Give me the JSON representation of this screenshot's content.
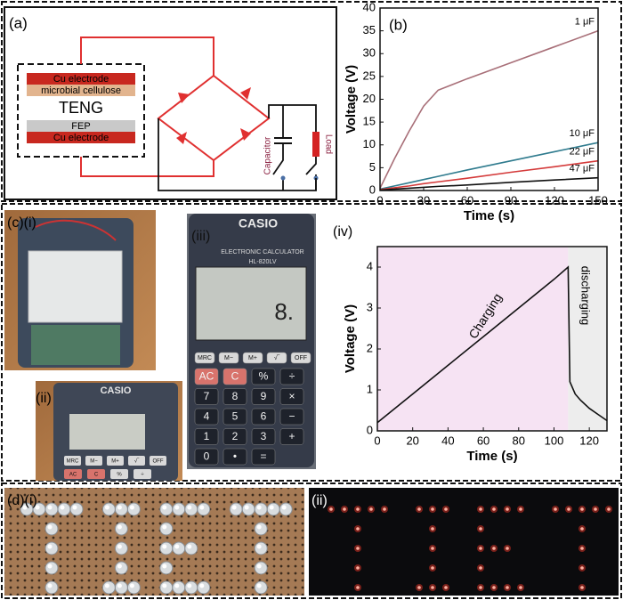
{
  "panel_a": {
    "label": "(a)",
    "layers": [
      "Cu electrode",
      "microbial cellulose",
      "FEP",
      "Cu electrode"
    ],
    "device": "TENG",
    "capacitor": "Capacitor",
    "load": "Load"
  },
  "panel_c": {
    "label_i": "(c)(i)",
    "label_ii": "(ii)",
    "label_iii": "(iii)",
    "brand": "CASIO",
    "subtitle": "ELECTRONIC CALCULATOR",
    "model": "HL-820LV",
    "display": "8.",
    "keys": [
      [
        "MRC",
        "M−",
        "M+",
        "√‾",
        "OFF"
      ],
      [
        "AC",
        "C",
        "%",
        "÷"
      ],
      [
        "7",
        "8",
        "9",
        "×"
      ],
      [
        "4",
        "5",
        "6",
        "−"
      ],
      [
        "1",
        "2",
        "3",
        "+"
      ],
      [
        "0",
        "•",
        "="
      ]
    ]
  },
  "panel_d": {
    "label_i": "(d)(i)",
    "label_ii": "(ii)"
  },
  "chart_data": [
    {
      "type": "line",
      "panel_label": "(b)",
      "xlabel": "Time (s)",
      "ylabel": "Voltage (V)",
      "x": [
        0,
        10,
        20,
        30,
        40,
        60,
        90,
        120,
        150
      ],
      "series": [
        {
          "name": "1 μF",
          "color": "#a86f78",
          "values": [
            0.5,
            7,
            13,
            18.5,
            22,
            24.5,
            28,
            31.5,
            35
          ]
        },
        {
          "name": "10 μF",
          "color": "#2f7b8e",
          "values": [
            0.3,
            1,
            1.7,
            2.4,
            3.1,
            4.5,
            6.5,
            8.5,
            10.5
          ]
        },
        {
          "name": "22 μF",
          "color": "#d43a3a",
          "values": [
            0.2,
            0.6,
            1,
            1.5,
            1.9,
            2.7,
            4,
            5.2,
            6.5
          ]
        },
        {
          "name": "47 μF",
          "color": "#111111",
          "values": [
            0.1,
            0.3,
            0.5,
            0.7,
            0.9,
            1.2,
            1.8,
            2.3,
            2.8
          ]
        }
      ],
      "xlim": [
        0,
        150
      ],
      "ylim": [
        0,
        40
      ],
      "xticks": [
        0,
        30,
        60,
        90,
        120,
        150
      ],
      "yticks": [
        0,
        5,
        10,
        15,
        20,
        25,
        30,
        35,
        40
      ]
    },
    {
      "type": "line",
      "panel_label": "(iv)",
      "xlabel": "Time (s)",
      "ylabel": "Voltage (V)",
      "regions": [
        {
          "label": "Charging",
          "start": 0,
          "end": 108,
          "color": "#f6e3f3"
        },
        {
          "label": "discharging",
          "start": 108,
          "end": 130,
          "color": "#ededed"
        }
      ],
      "x": [
        0,
        20,
        40,
        60,
        80,
        100,
        108,
        109,
        112,
        115,
        120,
        125,
        130
      ],
      "series": [
        {
          "color": "#111111",
          "values": [
            0.2,
            0.9,
            1.6,
            2.3,
            3.0,
            3.7,
            4.0,
            1.2,
            0.9,
            0.75,
            0.55,
            0.4,
            0.25
          ]
        }
      ],
      "xlim": [
        0,
        130
      ],
      "ylim": [
        0,
        4.5
      ],
      "xticks": [
        0,
        20,
        40,
        60,
        80,
        100,
        120
      ],
      "yticks": [
        0,
        1,
        2,
        3,
        4
      ]
    }
  ]
}
